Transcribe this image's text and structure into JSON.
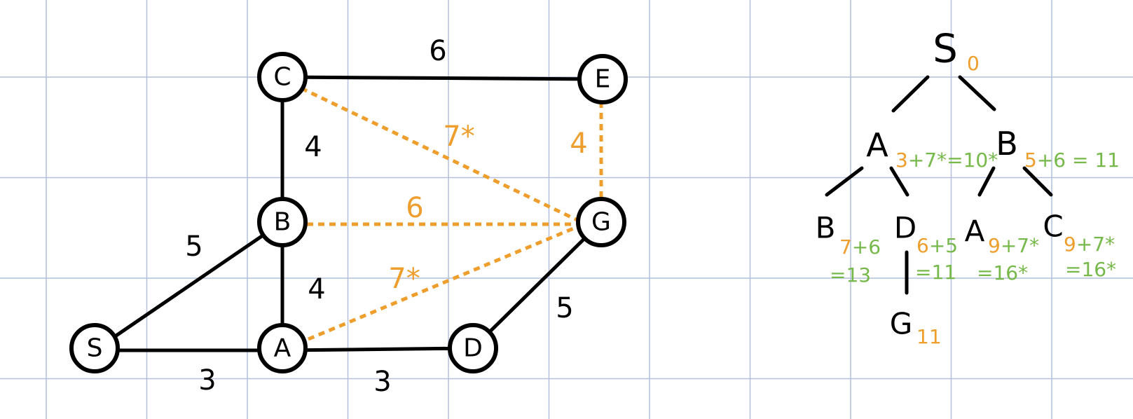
{
  "colors": {
    "grid": "#b4c0dc",
    "edge": "#000000",
    "heuristic": "#ee9e2c",
    "cost": "#76b84a"
  },
  "graph": {
    "nodes": {
      "S": "S",
      "A": "A",
      "B": "B",
      "C": "C",
      "D": "D",
      "E": "E",
      "G": "G"
    },
    "edge_weights": {
      "S_A": "3",
      "S_B": "5",
      "A_B": "4",
      "B_C": "4",
      "C_E": "6",
      "A_D": "3",
      "D_G": "5"
    },
    "heuristics": {
      "C_G": "7*",
      "E_G": "4",
      "B_G": "6",
      "A_G": "7*"
    }
  },
  "search_tree": {
    "root": {
      "label": "S",
      "cost": "0"
    },
    "level1": [
      {
        "label": "A",
        "h": "3",
        "rest": "+7*=10*"
      },
      {
        "label": "B",
        "h": "5",
        "rest": "+6 = 11"
      }
    ],
    "level2": [
      {
        "label": "B",
        "h": "7",
        "line1": "+6",
        "line2": "=13"
      },
      {
        "label": "D",
        "h": "6",
        "line1": "+5",
        "line2": "=11"
      },
      {
        "label": "A",
        "h": "9",
        "line1": "+7*",
        "line2": "=16*"
      },
      {
        "label": "C",
        "h": "9",
        "line1": "+7*",
        "line2": "=16*"
      }
    ],
    "level3": [
      {
        "label": "G",
        "cost": "11"
      }
    ]
  }
}
